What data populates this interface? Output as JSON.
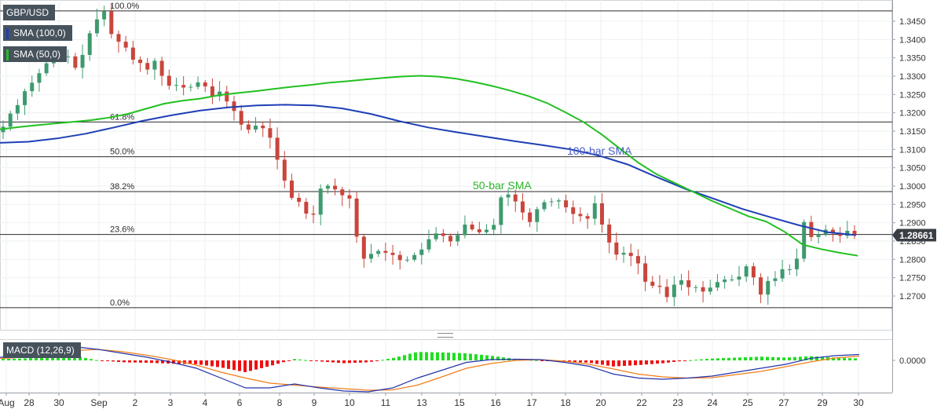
{
  "legend": {
    "symbol": "GBP/USD",
    "sma100": "SMA (100,0)",
    "sma50": "SMA (50,0)",
    "macd": "MACD (12,26,9)"
  },
  "colors": {
    "up": "#3e9a6e",
    "down": "#c9453b",
    "sma100": "#1f3fb5",
    "sma50": "#21c021",
    "macd_line": "#2233aa",
    "signal_line": "#f07d1a",
    "hist_pos": "#22dd22",
    "hist_neg": "#ee1111",
    "price_tag": "#3a3f45"
  },
  "chart_data": {
    "type": "candlestick",
    "symbol": "GBP/USD",
    "x_ticks": [
      "Aug",
      "28",
      "30",
      "Sep",
      "2",
      "3",
      "4",
      "6",
      "8",
      "9",
      "10",
      "11",
      "13",
      "15",
      "16",
      "17",
      "18",
      "20",
      "22",
      "23",
      "24",
      "25",
      "27",
      "29",
      "30"
    ],
    "y_ticks": [
      1.345,
      1.34,
      1.335,
      1.33,
      1.325,
      1.32,
      1.315,
      1.31,
      1.305,
      1.3,
      1.295,
      1.29,
      1.285,
      1.28,
      1.275,
      1.27
    ],
    "y_range": [
      1.2665,
      1.3485
    ],
    "current_price": 1.28661,
    "current_price_label": "1.28661",
    "fibonacci": [
      {
        "label": "100.0%",
        "level": 1.3478
      },
      {
        "label": "61.8%",
        "level": 1.3175
      },
      {
        "label": "50.0%",
        "level": 1.308
      },
      {
        "label": "38.2%",
        "level": 1.2985
      },
      {
        "label": "23.6%",
        "level": 1.2868
      },
      {
        "label": "0.0%",
        "level": 1.2668
      }
    ],
    "annotations": [
      {
        "text": "100-bar SMA",
        "color": "#4a5fc8"
      },
      {
        "text": "50-bar SMA",
        "color": "#2ab52a"
      }
    ],
    "closes": [
      1.3162,
      1.3198,
      1.3221,
      1.3259,
      1.3282,
      1.3308,
      1.3335,
      1.3347,
      1.3352,
      1.3354,
      1.3323,
      1.3358,
      1.3417,
      1.3455,
      1.3477,
      1.3415,
      1.3394,
      1.3378,
      1.3345,
      1.3336,
      1.3318,
      1.3342,
      1.3301,
      1.3274,
      1.3276,
      1.3269,
      1.3271,
      1.3283,
      1.3272,
      1.3245,
      1.3258,
      1.3231,
      1.3205,
      1.3168,
      1.3154,
      1.3165,
      1.3158,
      1.3132,
      1.3072,
      1.3015,
      1.2968,
      1.2957,
      1.2925,
      1.2922,
      1.2993,
      1.3001,
      1.2991,
      1.2975,
      1.2966,
      1.2862,
      1.2802,
      1.2815,
      1.2823,
      1.2818,
      1.2812,
      1.2798,
      1.2799,
      1.2812,
      1.2827,
      1.2855,
      1.2871,
      1.2864,
      1.2849,
      1.2866,
      1.2895,
      1.2882,
      1.2874,
      1.2881,
      1.2894,
      1.2969,
      1.2977,
      1.2958,
      1.2928,
      1.2902,
      1.2937,
      1.2956,
      1.2958,
      1.2961,
      1.2942,
      1.2924,
      1.2918,
      1.2911,
      1.2953,
      1.2895,
      1.2846,
      1.2813,
      1.2818,
      1.2809,
      1.2789,
      1.2739,
      1.2728,
      1.2725,
      1.2697,
      1.2731,
      1.2743,
      1.2724,
      1.2724,
      1.2712,
      1.2723,
      1.2738,
      1.2745,
      1.2745,
      1.2753,
      1.2781,
      1.2751,
      1.2704,
      1.2741,
      1.2748,
      1.2773,
      1.2773,
      1.2802,
      1.2902,
      1.2861,
      1.2868,
      1.2881,
      1.2872,
      1.2864,
      1.2878,
      1.2866
    ],
    "sma50": [
      1.3155,
      1.3161,
      1.3166,
      1.3171,
      1.3175,
      1.318,
      1.3187,
      1.3197,
      1.3211,
      1.3225,
      1.3233,
      1.3239,
      1.3248,
      1.3254,
      1.3259,
      1.3265,
      1.3271,
      1.3276,
      1.3282,
      1.3286,
      1.3291,
      1.3295,
      1.3299,
      1.3301,
      1.3299,
      1.3293,
      1.3284,
      1.3273,
      1.326,
      1.3245,
      1.3226,
      1.3201,
      1.3174,
      1.314,
      1.3101,
      1.3063,
      1.3032,
      1.3008,
      1.2984,
      1.296,
      1.2939,
      1.2918,
      1.2903,
      1.2875,
      1.284,
      1.2828,
      1.2818,
      1.281
    ],
    "sma100": [
      1.3118,
      1.3121,
      1.313,
      1.3143,
      1.316,
      1.3178,
      1.3193,
      1.3206,
      1.3215,
      1.322,
      1.3222,
      1.322,
      1.3212,
      1.3197,
      1.3177,
      1.316,
      1.3147,
      1.3135,
      1.3123,
      1.3112,
      1.31,
      1.3083,
      1.3059,
      1.3025,
      1.2993,
      1.2966,
      1.2938,
      1.2915,
      1.2893,
      1.2874,
      1.2866
    ],
    "macd_line": [
      0.0008,
      0.0012,
      0.0025,
      0.0035,
      0.0028,
      0.0018,
      0.0008,
      -0.0005,
      -0.002,
      -0.0045,
      -0.007,
      -0.007,
      -0.006,
      -0.007,
      -0.0078,
      -0.008,
      -0.007,
      -0.0045,
      -0.0025,
      -0.0005,
      0.0002,
      0.0003,
      0.0002,
      -0.0005,
      -0.0015,
      -0.0035,
      -0.0045,
      -0.0048,
      -0.0045,
      -0.004,
      -0.003,
      -0.002,
      -0.001,
      0.0005,
      0.0012,
      0.0015
    ],
    "signal_line": [
      0.0005,
      0.0008,
      0.0015,
      0.0025,
      0.0028,
      0.0022,
      0.0013,
      0.0002,
      -0.0012,
      -0.003,
      -0.0045,
      -0.0058,
      -0.0063,
      -0.0068,
      -0.0072,
      -0.0076,
      -0.0075,
      -0.0063,
      -0.0042,
      -0.002,
      -0.0008,
      0.0,
      0.0002,
      -0.0002,
      -0.001,
      -0.0022,
      -0.0035,
      -0.0042,
      -0.0045,
      -0.0044,
      -0.0036,
      -0.0028,
      -0.0016,
      -0.0004,
      0.0006,
      0.0011
    ],
    "macd_range": [
      -0.008,
      0.005
    ],
    "macd_ticks_label": "0.0000"
  }
}
